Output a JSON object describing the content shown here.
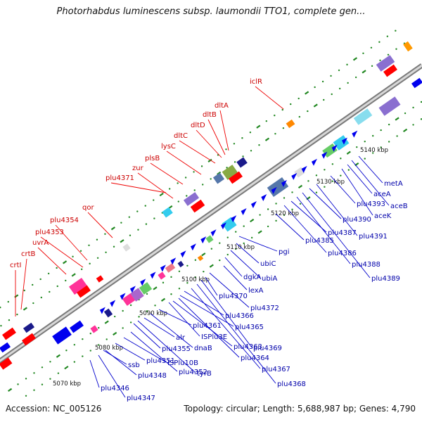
{
  "title": "Photorhabdus luminescens subsp. laumondii TTO1, complete gen...",
  "footer": {
    "accession": "Accession: NC_005126",
    "summary": "Topology: circular; Length: 5,688,987 bp; Genes: 4,790"
  },
  "colors": {
    "backbone": "#9a9a9a",
    "upper_strand_labels": "#cc0000",
    "lower_strand_labels": "#0000aa",
    "tick_marks": "#228822"
  },
  "kbp_labels": [
    "5070 kbp",
    "5080 kbp",
    "5090 kbp",
    "5100 kbp",
    "5110 kbp",
    "5120 kbp",
    "5130 kbp",
    "5140 kbp"
  ],
  "upper_gene_labels": [
    "crtI",
    "crtB",
    "uvrA",
    "plu4353",
    "plu4354",
    "qor",
    "plu4371",
    "zur",
    "plsB",
    "lysC",
    "dltC",
    "dltD",
    "dltB",
    "dltA",
    "iclR"
  ],
  "lower_gene_labels": [
    "plu4346",
    "plu4347",
    "plu4348",
    "ssb",
    "plu4351",
    "ISPlu10B",
    "plu4352",
    "plu4355",
    "tyrB",
    "alr",
    "dnaB",
    "plu4361",
    "ISPlu3E",
    "plu4363",
    "plu4364",
    "plu4365",
    "plu4366",
    "plu4367",
    "plu4368",
    "plu4369",
    "plu4370",
    "plu4372",
    "lexA",
    "dgkA",
    "ubiA",
    "ubiC",
    "pgi",
    "plu4385",
    "plu4386",
    "plu4387",
    "plu4388",
    "plu4389",
    "plu4390",
    "plu4391",
    "plu4393",
    "aceK",
    "aceA",
    "aceB",
    "metA"
  ]
}
